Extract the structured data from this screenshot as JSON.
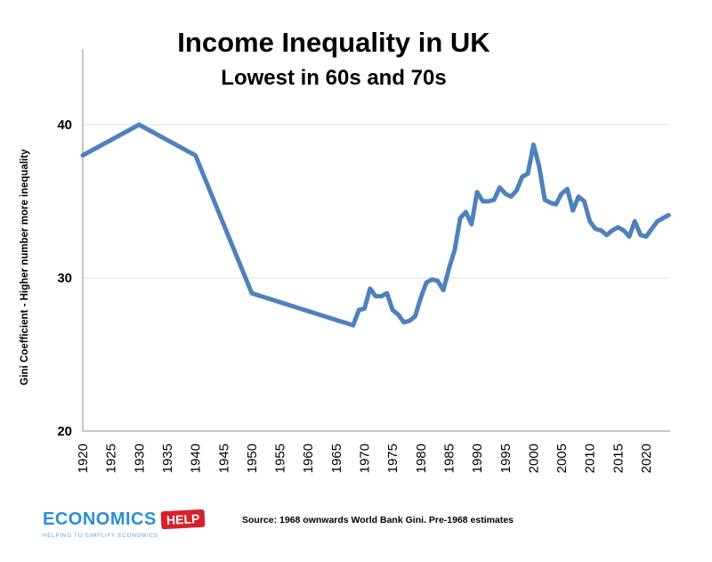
{
  "chart_data": {
    "type": "line",
    "title": "Income Inequality in UK",
    "subtitle": "Lowest in 60s and 70s",
    "ylabel": "Gini Coefficient - Higher number more inequality",
    "xlabel": "",
    "ylim": [
      20,
      45
    ],
    "xlim": [
      1920,
      2024
    ],
    "yticks": [
      20,
      30,
      40
    ],
    "xticks": [
      1920,
      1925,
      1930,
      1935,
      1940,
      1945,
      1950,
      1955,
      1960,
      1965,
      1970,
      1975,
      1980,
      1985,
      1990,
      1995,
      2000,
      2005,
      2010,
      2015,
      2020
    ],
    "grid": "horizontal",
    "color": "#4f81bd",
    "series": [
      {
        "name": "",
        "x": [
          1920,
          1930,
          1940,
          1950,
          1968,
          1969,
          1970,
          1971,
          1972,
          1973,
          1974,
          1975,
          1976,
          1977,
          1978,
          1979,
          1980,
          1981,
          1982,
          1983,
          1984,
          1985,
          1986,
          1987,
          1988,
          1989,
          1990,
          1991,
          1992,
          1993,
          1994,
          1995,
          1996,
          1997,
          1998,
          1999,
          2000,
          2001,
          2002,
          2003,
          2004,
          2005,
          2006,
          2007,
          2008,
          2009,
          2010,
          2011,
          2012,
          2013,
          2014,
          2015,
          2016,
          2017,
          2018,
          2019,
          2020,
          2021,
          2022,
          2023,
          2024
        ],
        "values": [
          38,
          40,
          38,
          29,
          26.9,
          27.9,
          28,
          29.3,
          28.8,
          28.8,
          29,
          27.9,
          27.6,
          27.1,
          27.2,
          27.5,
          28.7,
          29.7,
          29.9,
          29.8,
          29.2,
          30.6,
          31.8,
          33.9,
          34.3,
          33.5,
          35.6,
          35,
          35,
          35.1,
          35.9,
          35.5,
          35.3,
          35.7,
          36.6,
          36.8,
          38.7,
          37.3,
          35.1,
          34.9,
          34.8,
          35.5,
          35.8,
          34.4,
          35.3,
          35,
          33.7,
          33.2,
          33.1,
          32.8,
          33.1,
          33.3,
          33.1,
          32.7,
          33.7,
          32.8,
          32.7,
          33.2,
          33.7,
          33.9,
          34.1
        ]
      }
    ],
    "source": "Source: 1968 ownwards World Bank Gini. Pre-1968 estimates"
  },
  "logo": {
    "word": "ECONOMICS",
    "tag": "HELP",
    "slogan": "HELPING TO SIMPLIFY ECONOMICS"
  }
}
